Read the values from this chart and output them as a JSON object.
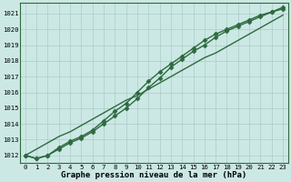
{
  "title": "Graphe pression niveau de la mer (hPa)",
  "background_color": "#cce8e4",
  "grid_color": "#aaccc8",
  "line_color": "#2d6a3f",
  "x_values": [
    0,
    1,
    2,
    3,
    4,
    5,
    6,
    7,
    8,
    9,
    10,
    11,
    12,
    13,
    14,
    15,
    16,
    17,
    18,
    19,
    20,
    21,
    22,
    23
  ],
  "y_line1": [
    1012.0,
    1011.8,
    1012.0,
    1012.4,
    1012.8,
    1013.1,
    1013.5,
    1014.0,
    1014.5,
    1015.0,
    1015.6,
    1016.3,
    1016.9,
    1017.6,
    1018.1,
    1018.6,
    1019.0,
    1019.5,
    1019.9,
    1020.2,
    1020.5,
    1020.8,
    1021.1,
    1021.3
  ],
  "y_line2": [
    1012.0,
    1011.8,
    1012.0,
    1012.5,
    1012.9,
    1013.2,
    1013.6,
    1014.2,
    1014.8,
    1015.3,
    1016.0,
    1016.7,
    1017.3,
    1017.8,
    1018.3,
    1018.8,
    1019.3,
    1019.7,
    1020.0,
    1020.3,
    1020.6,
    1020.9,
    1021.1,
    1021.4
  ],
  "y_straight": [
    1012.0,
    1012.4,
    1012.8,
    1013.2,
    1013.5,
    1013.9,
    1014.3,
    1014.7,
    1015.1,
    1015.5,
    1015.8,
    1016.2,
    1016.6,
    1017.0,
    1017.4,
    1017.8,
    1018.2,
    1018.5,
    1018.9,
    1019.3,
    1019.7,
    1020.1,
    1020.5,
    1020.9
  ],
  "ylim": [
    1011.5,
    1021.7
  ],
  "yticks": [
    1012,
    1013,
    1014,
    1015,
    1016,
    1017,
    1018,
    1019,
    1020,
    1021
  ],
  "xlim": [
    -0.5,
    23.5
  ],
  "xticks": [
    0,
    1,
    2,
    3,
    4,
    5,
    6,
    7,
    8,
    9,
    10,
    11,
    12,
    13,
    14,
    15,
    16,
    17,
    18,
    19,
    20,
    21,
    22,
    23
  ],
  "marker": "D",
  "marker_size": 2.5,
  "line_width": 1.0,
  "title_fontsize": 6.5,
  "tick_fontsize": 5.2,
  "ylabel_color": "#2d6a3f"
}
